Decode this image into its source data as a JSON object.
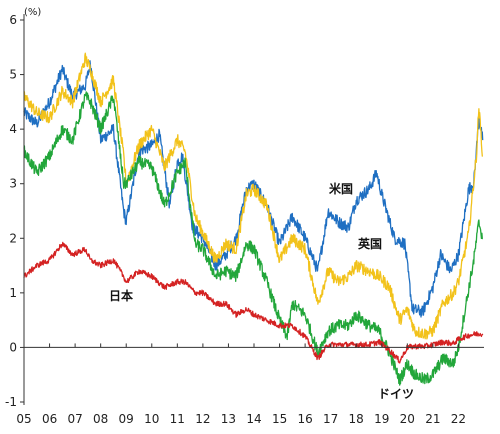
{
  "chart_data": {
    "type": "line",
    "unit": "(%)",
    "ylim": [
      -1,
      6
    ],
    "y_ticks": [
      "-1",
      "0",
      "1",
      "2",
      "3",
      "4",
      "5",
      "6"
    ],
    "x_ticks": [
      "05",
      "06",
      "07",
      "08",
      "09",
      "10",
      "11",
      "12",
      "13",
      "14",
      "15",
      "16",
      "17",
      "18",
      "19",
      "20",
      "21",
      "22"
    ],
    "xlim": [
      2005.0,
      2023.0
    ],
    "grid": false,
    "series": [
      {
        "name": "米国",
        "color": "#1f6fc2",
        "points": [
          [
            2005.0,
            4.3
          ],
          [
            2005.5,
            4.1
          ],
          [
            2006.0,
            4.5
          ],
          [
            2006.5,
            5.1
          ],
          [
            2006.9,
            4.6
          ],
          [
            2007.4,
            4.8
          ],
          [
            2007.6,
            5.2
          ],
          [
            2008.0,
            3.8
          ],
          [
            2008.5,
            4.0
          ],
          [
            2008.9,
            2.5
          ],
          [
            2009.0,
            2.3
          ],
          [
            2009.5,
            3.6
          ],
          [
            2010.0,
            3.7
          ],
          [
            2010.3,
            3.9
          ],
          [
            2010.7,
            2.6
          ],
          [
            2011.0,
            3.4
          ],
          [
            2011.2,
            3.5
          ],
          [
            2011.6,
            2.2
          ],
          [
            2012.0,
            2.0
          ],
          [
            2012.5,
            1.5
          ],
          [
            2012.9,
            1.7
          ],
          [
            2013.3,
            2.0
          ],
          [
            2013.7,
            2.9
          ],
          [
            2014.0,
            3.0
          ],
          [
            2014.5,
            2.6
          ],
          [
            2015.0,
            1.9
          ],
          [
            2015.5,
            2.4
          ],
          [
            2016.0,
            2.0
          ],
          [
            2016.5,
            1.4
          ],
          [
            2016.9,
            2.5
          ],
          [
            2017.3,
            2.3
          ],
          [
            2017.7,
            2.2
          ],
          [
            2018.0,
            2.7
          ],
          [
            2018.5,
            2.9
          ],
          [
            2018.8,
            3.2
          ],
          [
            2019.0,
            2.8
          ],
          [
            2019.5,
            2.0
          ],
          [
            2019.9,
            1.9
          ],
          [
            2020.2,
            0.7
          ],
          [
            2020.6,
            0.65
          ],
          [
            2021.0,
            1.1
          ],
          [
            2021.3,
            1.7
          ],
          [
            2021.7,
            1.4
          ],
          [
            2022.0,
            1.7
          ],
          [
            2022.4,
            2.9
          ],
          [
            2022.6,
            3.0
          ],
          [
            2022.8,
            4.2
          ],
          [
            2022.95,
            3.8
          ]
        ]
      },
      {
        "name": "英国",
        "color": "#f2c21b",
        "points": [
          [
            2005.0,
            4.6
          ],
          [
            2005.5,
            4.3
          ],
          [
            2006.0,
            4.2
          ],
          [
            2006.5,
            4.7
          ],
          [
            2006.9,
            4.5
          ],
          [
            2007.4,
            5.3
          ],
          [
            2007.6,
            5.1
          ],
          [
            2008.0,
            4.5
          ],
          [
            2008.5,
            4.9
          ],
          [
            2008.9,
            3.5
          ],
          [
            2009.0,
            3.0
          ],
          [
            2009.5,
            3.7
          ],
          [
            2010.0,
            4.0
          ],
          [
            2010.5,
            3.3
          ],
          [
            2011.0,
            3.8
          ],
          [
            2011.3,
            3.6
          ],
          [
            2011.7,
            2.4
          ],
          [
            2012.0,
            2.1
          ],
          [
            2012.5,
            1.6
          ],
          [
            2012.9,
            1.9
          ],
          [
            2013.3,
            1.8
          ],
          [
            2013.7,
            2.8
          ],
          [
            2014.0,
            2.9
          ],
          [
            2014.5,
            2.6
          ],
          [
            2015.0,
            1.6
          ],
          [
            2015.5,
            2.0
          ],
          [
            2016.0,
            1.8
          ],
          [
            2016.5,
            0.8
          ],
          [
            2016.9,
            1.4
          ],
          [
            2017.3,
            1.2
          ],
          [
            2017.7,
            1.3
          ],
          [
            2018.0,
            1.5
          ],
          [
            2018.5,
            1.4
          ],
          [
            2018.9,
            1.3
          ],
          [
            2019.3,
            1.1
          ],
          [
            2019.7,
            0.5
          ],
          [
            2020.0,
            0.7
          ],
          [
            2020.3,
            0.3
          ],
          [
            2020.7,
            0.25
          ],
          [
            2021.0,
            0.3
          ],
          [
            2021.4,
            0.8
          ],
          [
            2021.8,
            1.0
          ],
          [
            2022.0,
            1.2
          ],
          [
            2022.4,
            2.1
          ],
          [
            2022.7,
            3.5
          ],
          [
            2022.8,
            4.4
          ],
          [
            2022.95,
            3.5
          ]
        ]
      },
      {
        "name": "ドイツ",
        "color": "#22a63a",
        "points": [
          [
            2005.0,
            3.6
          ],
          [
            2005.5,
            3.2
          ],
          [
            2006.0,
            3.5
          ],
          [
            2006.5,
            4.0
          ],
          [
            2006.9,
            3.8
          ],
          [
            2007.4,
            4.6
          ],
          [
            2007.6,
            4.5
          ],
          [
            2008.0,
            4.0
          ],
          [
            2008.5,
            4.6
          ],
          [
            2008.9,
            3.0
          ],
          [
            2009.0,
            3.0
          ],
          [
            2009.5,
            3.4
          ],
          [
            2010.0,
            3.3
          ],
          [
            2010.5,
            2.6
          ],
          [
            2011.0,
            3.2
          ],
          [
            2011.3,
            3.4
          ],
          [
            2011.7,
            1.9
          ],
          [
            2012.0,
            1.8
          ],
          [
            2012.5,
            1.3
          ],
          [
            2012.9,
            1.4
          ],
          [
            2013.3,
            1.3
          ],
          [
            2013.7,
            1.9
          ],
          [
            2014.0,
            1.8
          ],
          [
            2014.5,
            1.2
          ],
          [
            2015.0,
            0.5
          ],
          [
            2015.3,
            0.2
          ],
          [
            2015.5,
            0.8
          ],
          [
            2016.0,
            0.6
          ],
          [
            2016.5,
            -0.1
          ],
          [
            2016.9,
            0.3
          ],
          [
            2017.3,
            0.4
          ],
          [
            2017.7,
            0.4
          ],
          [
            2018.0,
            0.6
          ],
          [
            2018.5,
            0.4
          ],
          [
            2018.9,
            0.3
          ],
          [
            2019.3,
            -0.1
          ],
          [
            2019.7,
            -0.6
          ],
          [
            2020.0,
            -0.3
          ],
          [
            2020.3,
            -0.5
          ],
          [
            2020.7,
            -0.6
          ],
          [
            2021.0,
            -0.5
          ],
          [
            2021.4,
            -0.2
          ],
          [
            2021.8,
            -0.3
          ],
          [
            2022.0,
            0.0
          ],
          [
            2022.3,
            0.8
          ],
          [
            2022.6,
            1.6
          ],
          [
            2022.8,
            2.3
          ],
          [
            2022.95,
            2.0
          ]
        ]
      },
      {
        "name": "日本",
        "color": "#d42222",
        "points": [
          [
            2005.0,
            1.3
          ],
          [
            2005.5,
            1.5
          ],
          [
            2006.0,
            1.6
          ],
          [
            2006.5,
            1.9
          ],
          [
            2006.9,
            1.7
          ],
          [
            2007.4,
            1.8
          ],
          [
            2007.6,
            1.6
          ],
          [
            2008.0,
            1.5
          ],
          [
            2008.5,
            1.6
          ],
          [
            2008.9,
            1.3
          ],
          [
            2009.0,
            1.2
          ],
          [
            2009.5,
            1.4
          ],
          [
            2010.0,
            1.3
          ],
          [
            2010.5,
            1.1
          ],
          [
            2011.0,
            1.2
          ],
          [
            2011.3,
            1.2
          ],
          [
            2011.7,
            1.0
          ],
          [
            2012.0,
            1.0
          ],
          [
            2012.5,
            0.8
          ],
          [
            2012.9,
            0.8
          ],
          [
            2013.3,
            0.6
          ],
          [
            2013.7,
            0.7
          ],
          [
            2014.0,
            0.6
          ],
          [
            2014.5,
            0.5
          ],
          [
            2015.0,
            0.4
          ],
          [
            2015.5,
            0.4
          ],
          [
            2016.0,
            0.2
          ],
          [
            2016.5,
            -0.2
          ],
          [
            2016.9,
            0.05
          ],
          [
            2017.3,
            0.05
          ],
          [
            2017.7,
            0.05
          ],
          [
            2018.0,
            0.05
          ],
          [
            2018.5,
            0.05
          ],
          [
            2018.9,
            0.1
          ],
          [
            2019.3,
            -0.05
          ],
          [
            2019.7,
            -0.25
          ],
          [
            2020.0,
            0.0
          ],
          [
            2020.3,
            0.02
          ],
          [
            2020.7,
            0.02
          ],
          [
            2021.0,
            0.05
          ],
          [
            2021.4,
            0.1
          ],
          [
            2021.8,
            0.07
          ],
          [
            2022.0,
            0.15
          ],
          [
            2022.4,
            0.22
          ],
          [
            2022.7,
            0.25
          ],
          [
            2022.95,
            0.25
          ]
        ]
      }
    ]
  }
}
